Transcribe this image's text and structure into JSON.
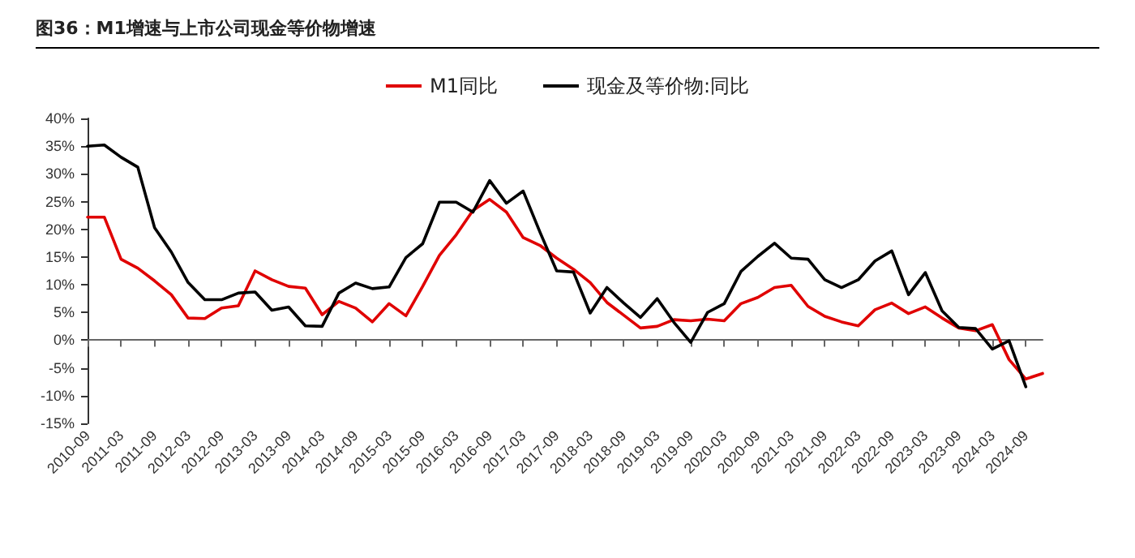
{
  "chart_data": {
    "type": "line",
    "title": "图36：M1增速与上市公司现金等价物增速",
    "categories": [
      "2010-09",
      null,
      "2011-03",
      null,
      "2011-09",
      null,
      "2012-03",
      null,
      "2012-09",
      null,
      "2013-03",
      null,
      "2013-09",
      null,
      "2014-03",
      null,
      "2014-09",
      null,
      "2015-03",
      null,
      "2015-09",
      null,
      "2016-03",
      null,
      "2016-09",
      null,
      "2017-03",
      null,
      "2017-09",
      null,
      "2018-03",
      null,
      "2018-09",
      null,
      "2019-03",
      null,
      "2019-09",
      null,
      "2020-03",
      null,
      "2020-09",
      null,
      "2021-03",
      null,
      "2021-09",
      null,
      "2022-03",
      null,
      "2022-09",
      null,
      "2023-03",
      null,
      "2023-09",
      null,
      "2024-03",
      null,
      "2024-09",
      null
    ],
    "series": [
      {
        "name": "M1同比",
        "color": "#e00000",
        "values": [
          22.2,
          22.2,
          14.6,
          13.0,
          10.7,
          8.2,
          4.0,
          3.9,
          5.8,
          6.2,
          12.5,
          10.9,
          9.7,
          9.4,
          4.6,
          7.0,
          5.8,
          3.3,
          6.6,
          4.4,
          9.7,
          15.3,
          19.0,
          23.4,
          25.4,
          23.1,
          18.5,
          17.1,
          14.8,
          12.8,
          10.4,
          6.8,
          4.5,
          2.2,
          2.5,
          3.7,
          3.5,
          3.8,
          3.5,
          6.6,
          7.7,
          9.5,
          9.9,
          6.1,
          4.3,
          3.3,
          2.6,
          5.5,
          6.7,
          4.8,
          6.0,
          4.0,
          2.2,
          1.7,
          2.8,
          -3.5,
          -7.0,
          -6.0
        ]
      },
      {
        "name": "现金及等价物:同比",
        "color": "#000000",
        "values": [
          35.0,
          35.2,
          33.0,
          31.2,
          20.3,
          15.9,
          10.4,
          7.3,
          7.3,
          8.5,
          8.7,
          5.4,
          6.0,
          2.6,
          2.5,
          8.5,
          10.3,
          9.3,
          9.6,
          14.9,
          17.4,
          24.9,
          24.9,
          23.1,
          28.8,
          24.7,
          26.9,
          19.5,
          12.5,
          12.3,
          4.9,
          9.5,
          6.7,
          4.1,
          7.5,
          3.2,
          -0.4,
          5.0,
          6.6,
          12.4,
          15.1,
          17.5,
          14.8,
          14.6,
          10.9,
          9.5,
          10.9,
          14.3,
          16.1,
          8.2,
          12.2,
          5.3,
          2.3,
          2.1,
          -1.6,
          -0.1,
          -8.4,
          null
        ]
      }
    ],
    "ylim": [
      -15,
      40
    ],
    "yticks": [
      {
        "value": -15,
        "label": "-15%"
      },
      {
        "value": -10,
        "label": "-10%"
      },
      {
        "value": -5,
        "label": "-5%"
      },
      {
        "value": 0,
        "label": "0%"
      },
      {
        "value": 5,
        "label": "5%"
      },
      {
        "value": 10,
        "label": "10%"
      },
      {
        "value": 15,
        "label": "15%"
      },
      {
        "value": 20,
        "label": "20%"
      },
      {
        "value": 25,
        "label": "25%"
      },
      {
        "value": 30,
        "label": "30%"
      },
      {
        "value": 35,
        "label": "35%"
      },
      {
        "value": 40,
        "label": "40%"
      }
    ],
    "legend": "top",
    "marker": "none",
    "line_style": "solid"
  }
}
